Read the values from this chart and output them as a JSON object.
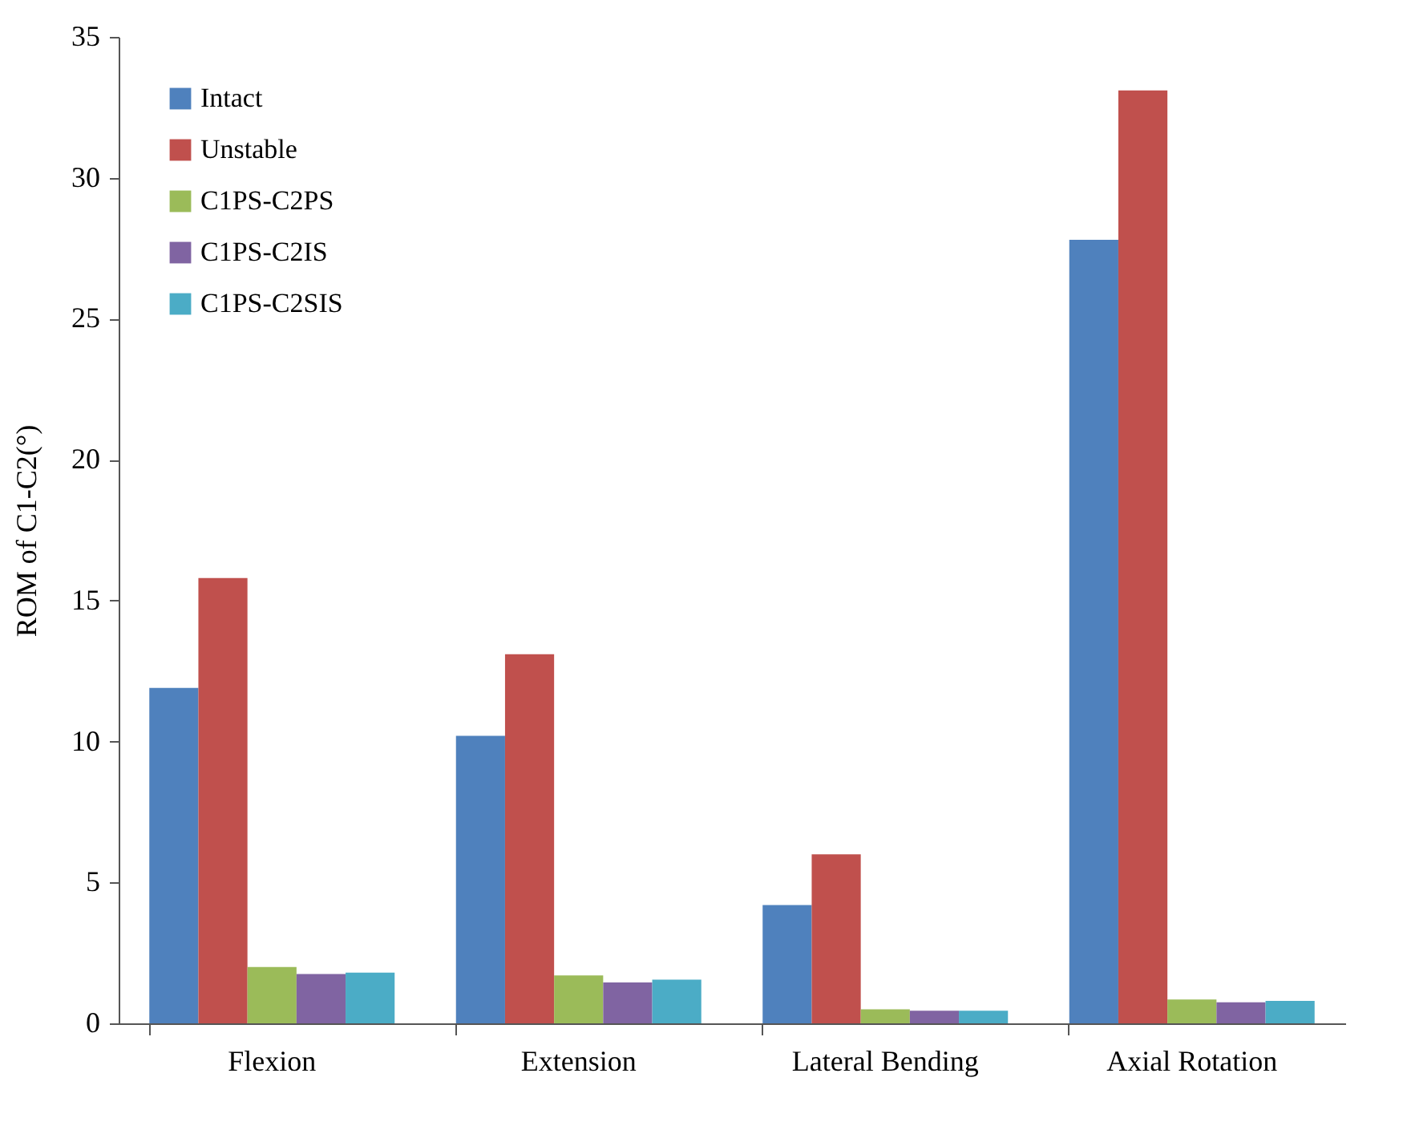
{
  "chart_data": {
    "type": "bar",
    "ylabel": "ROM of C1-C2(°)",
    "categories": [
      "Flexion",
      "Extension",
      "Lateral Bending",
      "Axial Rotation"
    ],
    "series": [
      {
        "name": "Intact",
        "color": "#4f81bd",
        "values": [
          11.9,
          10.2,
          4.2,
          27.8
        ]
      },
      {
        "name": "Unstable",
        "color": "#c0504d",
        "values": [
          15.8,
          13.1,
          6.0,
          33.1
        ]
      },
      {
        "name": "C1PS-C2PS",
        "color": "#9bbb59",
        "values": [
          2.0,
          1.7,
          0.5,
          0.85
        ]
      },
      {
        "name": "C1PS-C2IS",
        "color": "#8064a2",
        "values": [
          1.75,
          1.45,
          0.45,
          0.75
        ]
      },
      {
        "name": "C1PS-C2SIS",
        "color": "#4bacc6",
        "values": [
          1.8,
          1.55,
          0.45,
          0.8
        ]
      }
    ],
    "ylim": [
      0,
      35
    ],
    "yticks": [
      0,
      5,
      10,
      15,
      20,
      25,
      30,
      35
    ],
    "grid": false,
    "legend": "top left"
  }
}
